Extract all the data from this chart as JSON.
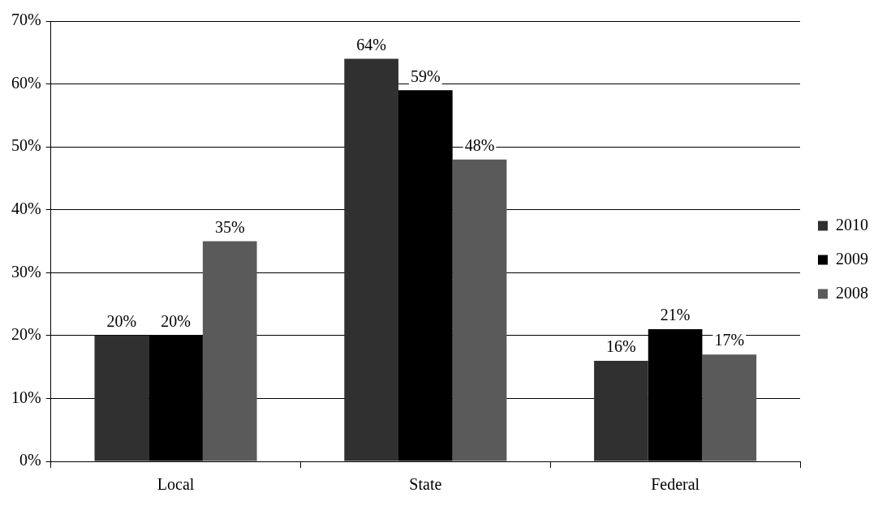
{
  "chart_data": {
    "type": "bar",
    "categories": [
      "Local",
      "State",
      "Federal"
    ],
    "series": [
      {
        "name": "2010",
        "color": "#303030",
        "values": [
          20,
          64,
          16
        ],
        "value_labels": [
          "20%",
          "64%",
          "16%"
        ]
      },
      {
        "name": "2009",
        "color": "#000000",
        "values": [
          20,
          59,
          21
        ],
        "value_labels": [
          "20%",
          "59%",
          "21%"
        ]
      },
      {
        "name": "2008",
        "color": "#5a5a5a",
        "values": [
          35,
          48,
          17
        ],
        "value_labels": [
          "35%",
          "48%",
          "17%"
        ]
      }
    ],
    "ylim": [
      0,
      70
    ],
    "yticks": [
      {
        "value": 0,
        "label": "0%"
      },
      {
        "value": 10,
        "label": "10%"
      },
      {
        "value": 20,
        "label": "20%"
      },
      {
        "value": 30,
        "label": "30%"
      },
      {
        "value": 40,
        "label": "40%"
      },
      {
        "value": 50,
        "label": "50%"
      },
      {
        "value": 60,
        "label": "60%"
      },
      {
        "value": 70,
        "label": "70%"
      }
    ],
    "grid": "y",
    "legend": "right"
  }
}
